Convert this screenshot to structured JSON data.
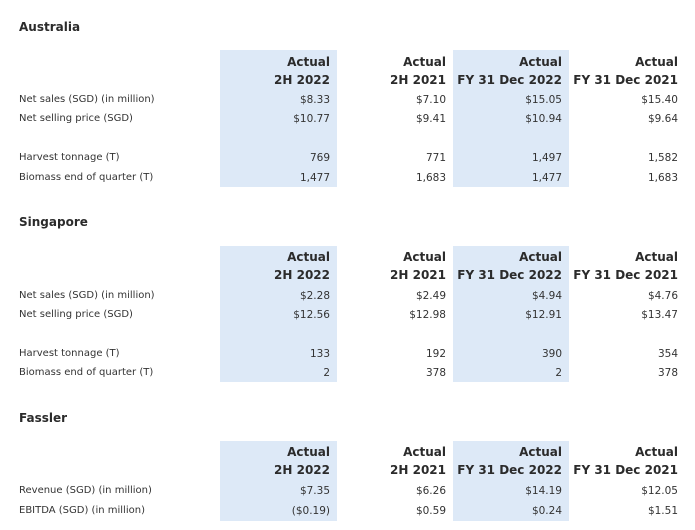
{
  "column_headers": [
    {
      "line1": "Actual",
      "line2": "2H 2022"
    },
    {
      "line1": "Actual",
      "line2": "2H 2021"
    },
    {
      "line1": "Actual",
      "line2": "FY 31 Dec 2022"
    },
    {
      "line1": "Actual",
      "line2": "FY 31 Dec 2021"
    }
  ],
  "sections": [
    {
      "title": "Australia",
      "rows": [
        {
          "label": "Net sales (SGD) (in million)",
          "values": [
            "$8.33",
            "$7.10",
            "$15.05",
            "$15.40"
          ]
        },
        {
          "label": "Net selling price (SGD)",
          "values": [
            "$10.77",
            "$9.41",
            "$10.94",
            "$9.64"
          ]
        },
        {
          "label": "Harvest tonnage (T)",
          "values": [
            "769",
            "771",
            "1,497",
            "1,582"
          ]
        },
        {
          "label": "Biomass end of quarter (T)",
          "values": [
            "1,477",
            "1,683",
            "1,477",
            "1,683"
          ]
        }
      ]
    },
    {
      "title": "Singapore",
      "rows": [
        {
          "label": "Net sales (SGD) (in million)",
          "values": [
            "$2.28",
            "$2.49",
            "$4.94",
            "$4.76"
          ]
        },
        {
          "label": "Net selling price (SGD)",
          "values": [
            "$12.56",
            "$12.98",
            "$12.91",
            "$13.47"
          ]
        },
        {
          "label": "Harvest tonnage (T)",
          "values": [
            "133",
            "192",
            "390",
            "354"
          ]
        },
        {
          "label": "Biomass end of quarter (T)",
          "values": [
            "2",
            "378",
            "2",
            "378"
          ]
        }
      ]
    },
    {
      "title": "Fassler",
      "rows": [
        {
          "label": "Revenue (SGD) (in million)",
          "values": [
            "$7.35",
            "$6.26",
            "$14.19",
            "$12.05"
          ]
        },
        {
          "label": "EBITDA (SGD) (in million)",
          "values": [
            "($0.19)",
            "$0.59",
            "$0.24",
            "$1.51"
          ]
        }
      ]
    }
  ]
}
